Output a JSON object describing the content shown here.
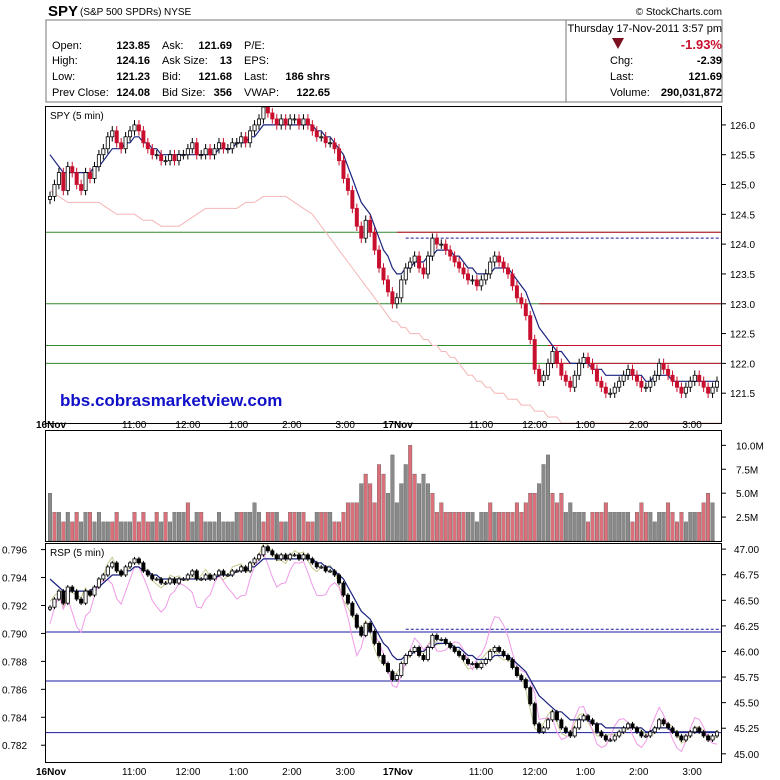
{
  "header": {
    "symbol": "SPY",
    "name": "(S&P 500 SPDRs)",
    "exchange": "NYSE",
    "copyright": "© StockCharts.com",
    "datetime": "Thursday  17-Nov-2011  3:57 pm",
    "change_pct": "-1.93%",
    "change_color": "#c8102e",
    "quote_left": [
      {
        "k": "Open:",
        "v": "123.85"
      },
      {
        "k": "High:",
        "v": "124.16"
      },
      {
        "k": "Low:",
        "v": "121.23"
      },
      {
        "k": "Prev Close:",
        "v": "124.08"
      }
    ],
    "quote_mid": [
      {
        "k": "Ask:",
        "v": "121.69"
      },
      {
        "k": "Ask Size:",
        "v": "13"
      },
      {
        "k": "Bid:",
        "v": "121.68"
      },
      {
        "k": "Bid Size:",
        "v": "356"
      }
    ],
    "quote_mid2": [
      {
        "k": "P/E:",
        "v": ""
      },
      {
        "k": "EPS:",
        "v": ""
      },
      {
        "k": "Last:",
        "v": "186 shrs"
      },
      {
        "k": "VWAP:",
        "v": "122.65"
      }
    ],
    "quote_right": [
      {
        "k": "Chg:",
        "v": "-2.39"
      },
      {
        "k": "Last:",
        "v": "121.69"
      },
      {
        "k": "Volume:",
        "v": "290,031,872"
      }
    ]
  },
  "colors": {
    "up": "#000000",
    "down": "#c8102e",
    "ma": "#1a237e",
    "ma_long": "#f4b6b6",
    "green_line": "#2e8b2e",
    "red_line": "#c8102e",
    "blue_dash": "#1a1aa0",
    "vol_up": "#8a8a8a",
    "vol_down": "#d9707a",
    "rsp_pink": "#f09ae8",
    "rsp_green": "#c8c890"
  },
  "chart_data": [
    {
      "type": "candlestick",
      "panel_label": "SPY (5 min)",
      "watermark": "bbs.cobrasmarketview.com",
      "y_ticks": [
        121.5,
        122.0,
        122.5,
        123.0,
        123.5,
        124.0,
        124.5,
        125.0,
        125.5,
        126.0
      ],
      "y_tick_labels": [
        "121.5",
        "122.0",
        "122.5",
        "123.0",
        "123.5",
        "124.0",
        "124.5",
        "125.0",
        "125.5",
        "126.0"
      ],
      "ylim": [
        121.0,
        126.3
      ],
      "x_labels": [
        {
          "label": "16Nov",
          "bold": true,
          "bar": 0
        },
        {
          "label": "11:00",
          "bar": 18
        },
        {
          "label": "12:00",
          "bar": 30
        },
        {
          "label": "1:00",
          "bar": 42
        },
        {
          "label": "2:00",
          "bar": 54
        },
        {
          "label": "3:00",
          "bar": 66
        },
        {
          "label": "17Nov",
          "bold": true,
          "bar": 78
        },
        {
          "label": "11:00",
          "bar": 96
        },
        {
          "label": "12:00",
          "bar": 108
        },
        {
          "label": "1:00",
          "bar": 120
        },
        {
          "label": "2:00",
          "bar": 132
        },
        {
          "label": "3:00",
          "bar": 144
        }
      ],
      "hlines": [
        {
          "y": 124.2,
          "color": "green"
        },
        {
          "y": 123.0,
          "color": "green"
        },
        {
          "y": 122.3,
          "color": "green"
        },
        {
          "y": 122.0,
          "color": "green"
        },
        {
          "y": 124.2,
          "color": "red",
          "from_bar": 78
        },
        {
          "y": 123.0,
          "color": "red",
          "from_bar": 110
        },
        {
          "y": 122.3,
          "color": "red",
          "from_bar": 112
        },
        {
          "y": 122.0,
          "color": "red",
          "from_bar": 112
        },
        {
          "y": 124.1,
          "color": "blue_dash",
          "from_bar": 80
        }
      ],
      "close": [
        124.8,
        125.0,
        125.2,
        124.9,
        125.3,
        125.2,
        125.0,
        124.9,
        125.2,
        125.1,
        125.3,
        125.5,
        125.6,
        125.8,
        125.9,
        125.7,
        125.6,
        125.8,
        125.9,
        126.0,
        125.9,
        125.7,
        125.6,
        125.5,
        125.5,
        125.4,
        125.4,
        125.5,
        125.4,
        125.5,
        125.5,
        125.6,
        125.7,
        125.5,
        125.5,
        125.6,
        125.5,
        125.6,
        125.7,
        125.6,
        125.6,
        125.7,
        125.7,
        125.8,
        125.7,
        125.9,
        126.0,
        126.1,
        126.3,
        126.2,
        126.1,
        126.0,
        126.1,
        126.0,
        126.1,
        126.1,
        126.0,
        126.1,
        126.0,
        125.9,
        125.8,
        125.8,
        125.7,
        125.7,
        125.6,
        125.4,
        125.1,
        124.9,
        124.6,
        124.3,
        124.1,
        124.4,
        124.2,
        123.9,
        123.6,
        123.4,
        123.2,
        123.0,
        123.1,
        123.4,
        123.6,
        123.7,
        123.8,
        123.6,
        123.5,
        123.8,
        124.1,
        124.0,
        124.0,
        123.9,
        123.8,
        123.7,
        123.6,
        123.5,
        123.4,
        123.4,
        123.3,
        123.4,
        123.5,
        123.7,
        123.8,
        123.7,
        123.6,
        123.5,
        123.3,
        123.1,
        123.0,
        122.8,
        122.4,
        121.9,
        121.7,
        121.8,
        122.0,
        122.2,
        122.0,
        121.8,
        121.7,
        121.6,
        121.8,
        122.0,
        122.1,
        122.0,
        121.9,
        121.7,
        121.6,
        121.5,
        121.5,
        121.6,
        121.7,
        121.8,
        121.9,
        121.8,
        121.7,
        121.6,
        121.6,
        121.7,
        121.8,
        122.0,
        121.9,
        121.8,
        121.7,
        121.6,
        121.5,
        121.6,
        121.7,
        121.8,
        121.7,
        121.6,
        121.5,
        121.6,
        121.7
      ],
      "ma_short": [
        125.5,
        125.4,
        125.3,
        125.2,
        125.2,
        125.2,
        125.2,
        125.2,
        125.2,
        125.2,
        125.3,
        125.3,
        125.4,
        125.5,
        125.6,
        125.6,
        125.6,
        125.7,
        125.7,
        125.8,
        125.8,
        125.7,
        125.7,
        125.6,
        125.6,
        125.5,
        125.5,
        125.5,
        125.5,
        125.5,
        125.5,
        125.5,
        125.5,
        125.5,
        125.5,
        125.5,
        125.5,
        125.5,
        125.6,
        125.6,
        125.6,
        125.6,
        125.7,
        125.7,
        125.7,
        125.8,
        125.8,
        125.9,
        126.0,
        126.0,
        126.0,
        126.0,
        126.0,
        126.0,
        126.0,
        126.0,
        126.0,
        126.0,
        126.0,
        126.0,
        125.9,
        125.9,
        125.8,
        125.8,
        125.7,
        125.6,
        125.5,
        125.3,
        125.1,
        124.9,
        124.7,
        124.6,
        124.5,
        124.3,
        124.1,
        123.9,
        123.8,
        123.6,
        123.5,
        123.5,
        123.6,
        123.6,
        123.7,
        123.7,
        123.7,
        123.8,
        123.8,
        123.9,
        123.9,
        123.9,
        123.9,
        123.8,
        123.8,
        123.7,
        123.6,
        123.6,
        123.5,
        123.5,
        123.5,
        123.5,
        123.6,
        123.6,
        123.6,
        123.6,
        123.5,
        123.4,
        123.3,
        123.2,
        123.0,
        122.8,
        122.6,
        122.5,
        122.4,
        122.3,
        122.2,
        122.2,
        122.1,
        122.0,
        122.0,
        122.0,
        122.0,
        122.0,
        121.9,
        121.9,
        121.9,
        121.8,
        121.8,
        121.8,
        121.8,
        121.8,
        121.8,
        121.8,
        121.8,
        121.8,
        121.7,
        121.7,
        121.8,
        121.8,
        121.8,
        121.8,
        121.7,
        121.7,
        121.7,
        121.7,
        121.7,
        121.7,
        121.7,
        121.7,
        121.7,
        121.7,
        121.7
      ],
      "ma_long": [
        124.9,
        124.85,
        124.8,
        124.75,
        124.7,
        124.7,
        124.7,
        124.7,
        124.7,
        124.7,
        124.7,
        124.7,
        124.65,
        124.6,
        124.55,
        124.5,
        124.5,
        124.5,
        124.5,
        124.5,
        124.45,
        124.4,
        124.4,
        124.4,
        124.35,
        124.3,
        124.3,
        124.3,
        124.3,
        124.3,
        124.35,
        124.4,
        124.45,
        124.5,
        124.55,
        124.6,
        124.6,
        124.6,
        124.6,
        124.6,
        124.6,
        124.6,
        124.6,
        124.65,
        124.7,
        124.7,
        124.7,
        124.75,
        124.8,
        124.8,
        124.8,
        124.8,
        124.8,
        124.8,
        124.75,
        124.7,
        124.65,
        124.6,
        124.55,
        124.5,
        124.4,
        124.3,
        124.2,
        124.1,
        124.0,
        123.9,
        123.8,
        123.7,
        123.6,
        123.5,
        123.4,
        123.3,
        123.2,
        123.1,
        123.0,
        122.9,
        122.8,
        122.7,
        122.7,
        122.6,
        122.6,
        122.5,
        122.5,
        122.5,
        122.4,
        122.4,
        122.3,
        122.3,
        122.2,
        122.2,
        122.1,
        122.1,
        122.0,
        121.9,
        121.8,
        121.8,
        121.7,
        121.7,
        121.6,
        121.6,
        121.5,
        121.5,
        121.5,
        121.4,
        121.4,
        121.4,
        121.3,
        121.3,
        121.3,
        121.2,
        121.2,
        121.2,
        121.1,
        121.1,
        121.1,
        121.0,
        121.0,
        121.0,
        121.0,
        121.0,
        121.0,
        121.0,
        121.0,
        121.0,
        121.0,
        121.0,
        121.0,
        121.0,
        121.0,
        121.0,
        121.0,
        121.0,
        121.0,
        121.0,
        121.0,
        121.0,
        121.0,
        121.0,
        121.0,
        121.0,
        121.0,
        121.0,
        121.0,
        121.0,
        121.0,
        121.0,
        121.0,
        121.0,
        121.0,
        121.0,
        121.0,
        121.0
      ]
    },
    {
      "type": "bar",
      "panel_label": "Volume",
      "y_ticks": [
        2500000,
        5000000,
        7500000,
        10000000
      ],
      "y_tick_labels": [
        "2.5M",
        "5.0M",
        "7.5M",
        "10.0M"
      ],
      "ylim": [
        0,
        11500000
      ],
      "values": [
        5,
        3,
        3,
        2,
        3,
        2,
        3,
        2,
        3,
        3,
        2,
        3,
        2,
        2,
        2,
        3,
        2,
        2,
        2,
        3,
        2,
        3,
        2,
        2,
        3,
        2,
        3,
        2,
        3,
        3,
        3,
        4,
        2,
        3,
        3,
        2,
        2,
        2,
        3,
        2,
        2,
        2,
        3,
        3,
        3,
        3,
        4,
        3,
        2,
        3,
        3,
        3,
        2,
        2,
        3,
        3,
        3,
        3,
        2,
        2,
        3,
        3,
        3,
        3,
        2,
        2,
        3,
        4,
        4,
        4,
        6,
        7,
        6,
        4,
        8,
        7,
        5,
        9,
        4,
        6,
        8,
        10,
        7,
        6,
        7,
        6,
        5,
        3,
        4,
        3,
        3,
        3,
        3,
        3,
        3,
        3,
        2,
        3,
        3,
        4,
        3,
        3,
        3,
        3,
        3,
        4,
        3,
        4,
        5,
        5,
        6,
        8,
        9,
        5,
        4,
        5,
        3,
        4,
        3,
        3,
        3,
        2,
        3,
        3,
        3,
        4,
        3,
        3,
        3,
        3,
        3,
        2,
        3,
        4,
        3,
        3,
        2,
        3,
        3,
        4,
        3,
        2,
        3,
        2,
        3,
        3,
        3,
        4,
        5,
        4
      ],
      "value_unit": "millions",
      "up": [
        1,
        0,
        1,
        0,
        1,
        0,
        0,
        1,
        1,
        0,
        1,
        1,
        1,
        1,
        0,
        0,
        1,
        1,
        1,
        0,
        0,
        0,
        0,
        1,
        0,
        1,
        0,
        1,
        1,
        1,
        1,
        0,
        1,
        1,
        0,
        1,
        1,
        1,
        1,
        1,
        1,
        1,
        1,
        0,
        1,
        1,
        1,
        1,
        0,
        0,
        0,
        1,
        0,
        1,
        0,
        0,
        1,
        0,
        0,
        0,
        1,
        0,
        0,
        1,
        0,
        0,
        0,
        0,
        0,
        0,
        1,
        0,
        0,
        0,
        0,
        0,
        1,
        1,
        1,
        1,
        1,
        0,
        0,
        1,
        1,
        1,
        0,
        0,
        0,
        0,
        0,
        0,
        0,
        0,
        1,
        1,
        1,
        1,
        1,
        0,
        1,
        0,
        0,
        0,
        0,
        0,
        0,
        0,
        0,
        0,
        1,
        1,
        1,
        0,
        0,
        0,
        1,
        1,
        1,
        1,
        1,
        0,
        0,
        0,
        0,
        0,
        1,
        1,
        1,
        1,
        1,
        0,
        0,
        0,
        0,
        1,
        1,
        1,
        1,
        0,
        0,
        0,
        0,
        1,
        1,
        1,
        0,
        0,
        0,
        1,
        1
      ]
    },
    {
      "type": "line",
      "panel_label": "RSP (5 min)",
      "y_ticks_left": [
        0.782,
        0.784,
        0.786,
        0.788,
        0.79,
        0.792,
        0.794,
        0.796
      ],
      "y_tick_labels_left": [
        "0.782",
        "0.784",
        "0.786",
        "0.788",
        "0.790",
        "0.792",
        "0.794",
        "0.796"
      ],
      "ylim_left": [
        0.7808,
        0.7964
      ],
      "y_ticks_right": [
        45.0,
        45.25,
        45.5,
        45.75,
        46.0,
        46.25,
        46.5,
        46.75,
        47.0
      ],
      "y_tick_labels_right": [
        "45.00",
        "45.25",
        "45.50",
        "45.75",
        "46.00",
        "46.25",
        "46.50",
        "46.75",
        "47.00"
      ],
      "hlines_left": [
        0.7901,
        0.7866,
        0.7829
      ],
      "blue_dash_left": 0.7903
    }
  ]
}
